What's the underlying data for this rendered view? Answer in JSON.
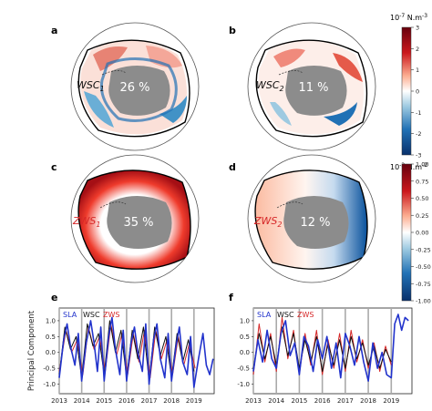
{
  "maps": [
    {
      "letter": "a",
      "mode_label": "WSC",
      "mode_sub": "1",
      "percent": "26 %"
    },
    {
      "letter": "b",
      "mode_label": "WSC",
      "mode_sub": "2",
      "percent": "11 %"
    },
    {
      "letter": "c",
      "mode_label": "ZWS",
      "mode_sub": "1",
      "percent": "35 %"
    },
    {
      "letter": "d",
      "mode_label": "ZWS",
      "mode_sub": "2",
      "percent": "12 %"
    }
  ],
  "colorbars": [
    {
      "unit_base": "10",
      "unit_exp": "-7",
      "unit_rest": " N.m",
      "unit_rest_exp": "-3",
      "ticks": [
        "3",
        "2",
        "1",
        "0",
        "-1",
        "-2",
        "-3"
      ]
    },
    {
      "unit_base": "10",
      "unit_exp": "-2",
      "unit_rest": " N.m",
      "unit_rest_exp": "-2",
      "ticks": [
        "1.00",
        "0.75",
        "0.50",
        "0.25",
        "0.00",
        "-0.25",
        "-0.50",
        "-0.75",
        "-1.00"
      ]
    }
  ],
  "colors": {
    "sla": "#2233cc",
    "wsc": "#111111",
    "zws": "#d62728",
    "land": "#8c8c8c",
    "pos": "#a50f15",
    "neg": "#08519c"
  },
  "chart_data": [
    {
      "type": "line",
      "panel": "e",
      "ylabel": "Principal Component",
      "ylim": [
        -1.3,
        1.4
      ],
      "yticks": [
        -1.0,
        -0.5,
        0.0,
        0.5,
        1.0
      ],
      "xlim": [
        2013.0,
        2019.9
      ],
      "xticks": [
        2013,
        2014,
        2015,
        2016,
        2017,
        2018,
        2019
      ],
      "legend": [
        "SLA",
        "WSC",
        "ZWS"
      ],
      "series": [
        {
          "name": "SLA",
          "x": [
            2013.0,
            2013.2,
            2013.35,
            2013.5,
            2013.7,
            2013.85,
            2014.0,
            2014.2,
            2014.4,
            2014.55,
            2014.7,
            2014.85,
            2015.0,
            2015.2,
            2015.35,
            2015.5,
            2015.7,
            2015.85,
            2016.0,
            2016.2,
            2016.35,
            2016.5,
            2016.7,
            2016.85,
            2017.0,
            2017.2,
            2017.35,
            2017.5,
            2017.7,
            2017.85,
            2018.0,
            2018.2,
            2018.35,
            2018.5,
            2018.7,
            2018.85,
            2019.0,
            2019.2,
            2019.4,
            2019.55,
            2019.7,
            2019.85
          ],
          "y": [
            -0.8,
            0.4,
            0.9,
            0.2,
            -0.4,
            0.6,
            -0.9,
            0.3,
            1.0,
            0.3,
            -0.6,
            0.8,
            -0.9,
            0.5,
            1.1,
            0.1,
            -0.7,
            0.7,
            -0.9,
            0.3,
            0.8,
            0.0,
            -0.6,
            0.9,
            -1.0,
            0.4,
            0.9,
            -0.2,
            -0.8,
            0.6,
            -0.9,
            0.2,
            0.8,
            -0.3,
            -0.7,
            0.5,
            -1.1,
            -0.2,
            0.6,
            -0.4,
            -0.7,
            -0.2
          ]
        },
        {
          "name": "WSC",
          "x": [
            2013.0,
            2013.25,
            2013.5,
            2013.75,
            2014.0,
            2014.25,
            2014.5,
            2014.75,
            2015.0,
            2015.25,
            2015.5,
            2015.75,
            2016.0,
            2016.25,
            2016.5,
            2016.75,
            2017.0,
            2017.25,
            2017.5,
            2017.75,
            2018.0,
            2018.25,
            2018.5,
            2018.75,
            2019.0
          ],
          "y": [
            -0.7,
            0.8,
            0.1,
            0.5,
            -0.8,
            0.9,
            0.2,
            0.6,
            -0.7,
            1.0,
            0.0,
            0.7,
            -0.8,
            0.7,
            -0.2,
            0.8,
            -0.9,
            0.8,
            -0.1,
            0.5,
            -0.8,
            0.6,
            -0.3,
            0.4,
            -0.6
          ]
        },
        {
          "name": "ZWS",
          "x": [
            2013.0,
            2013.3,
            2013.55,
            2013.8,
            2014.05,
            2014.3,
            2014.55,
            2014.8,
            2015.05,
            2015.3,
            2015.55,
            2015.8,
            2016.05,
            2016.3,
            2016.55,
            2016.8,
            2017.05,
            2017.3,
            2017.55,
            2017.8,
            2018.05,
            2018.3,
            2018.55,
            2018.8,
            2019.05
          ],
          "y": [
            -0.6,
            0.7,
            0.0,
            0.4,
            -0.7,
            0.8,
            0.1,
            0.5,
            -0.6,
            0.9,
            -0.1,
            0.6,
            -0.7,
            0.6,
            -0.3,
            0.7,
            -0.8,
            0.7,
            -0.2,
            0.4,
            -0.7,
            0.5,
            -0.4,
            0.3,
            -0.5
          ]
        }
      ]
    },
    {
      "type": "line",
      "panel": "f",
      "ylabel": "",
      "ylim": [
        -1.3,
        1.4
      ],
      "yticks": [
        -1.0,
        -0.5,
        0.0,
        0.5,
        1.0
      ],
      "xlim": [
        2013.0,
        2019.9
      ],
      "xticks": [
        2013,
        2014,
        2015,
        2016,
        2017,
        2018,
        2019
      ],
      "legend": [
        "SLA",
        "WSC",
        "ZWS"
      ],
      "series": [
        {
          "name": "SLA",
          "x": [
            2013.0,
            2013.2,
            2013.4,
            2013.6,
            2013.8,
            2014.0,
            2014.2,
            2014.4,
            2014.6,
            2014.8,
            2015.0,
            2015.2,
            2015.4,
            2015.6,
            2015.8,
            2016.0,
            2016.2,
            2016.4,
            2016.6,
            2016.8,
            2017.0,
            2017.2,
            2017.4,
            2017.6,
            2017.8,
            2018.0,
            2018.2,
            2018.4,
            2018.6,
            2018.8,
            2019.0,
            2019.15,
            2019.3,
            2019.45,
            2019.6,
            2019.75
          ],
          "y": [
            -0.6,
            0.4,
            -0.3,
            0.7,
            -0.2,
            -0.5,
            0.6,
            1.0,
            -0.1,
            0.3,
            -0.7,
            0.5,
            0.2,
            -0.6,
            0.4,
            -0.2,
            0.5,
            -0.5,
            0.3,
            -0.8,
            0.6,
            0.2,
            -0.4,
            0.5,
            -0.3,
            -0.9,
            0.3,
            -0.5,
            0.0,
            -0.7,
            -0.8,
            0.9,
            1.2,
            0.7,
            1.1,
            1.0
          ]
        },
        {
          "name": "WSC",
          "x": [
            2013.0,
            2013.25,
            2013.5,
            2013.75,
            2014.0,
            2014.25,
            2014.5,
            2014.75,
            2015.0,
            2015.25,
            2015.5,
            2015.75,
            2016.0,
            2016.25,
            2016.5,
            2016.75,
            2017.0,
            2017.25,
            2017.5,
            2017.75,
            2018.0,
            2018.25,
            2018.5,
            2018.75,
            2019.0
          ],
          "y": [
            -0.5,
            0.6,
            -0.2,
            0.5,
            -0.4,
            0.8,
            -0.1,
            0.6,
            -0.5,
            0.4,
            -0.3,
            0.5,
            -0.6,
            0.3,
            -0.4,
            0.4,
            -0.5,
            0.5,
            -0.2,
            0.3,
            -0.4,
            0.2,
            -0.5,
            0.1,
            -0.3
          ]
        },
        {
          "name": "ZWS",
          "x": [
            2013.0,
            2013.25,
            2013.5,
            2013.75,
            2014.0,
            2014.25,
            2014.5,
            2014.75,
            2015.0,
            2015.25,
            2015.5,
            2015.75,
            2016.0,
            2016.25,
            2016.5,
            2016.75,
            2017.0,
            2017.25,
            2017.5,
            2017.75,
            2018.0,
            2018.25,
            2018.5,
            2018.75,
            2019.0
          ],
          "y": [
            -0.7,
            0.9,
            -0.3,
            0.6,
            -0.6,
            1.1,
            -0.2,
            0.7,
            -0.7,
            0.6,
            -0.4,
            0.7,
            -0.7,
            0.4,
            -0.5,
            0.6,
            -0.6,
            0.7,
            -0.3,
            0.4,
            -0.5,
            0.3,
            -0.6,
            0.2,
            -0.4
          ]
        }
      ]
    }
  ]
}
